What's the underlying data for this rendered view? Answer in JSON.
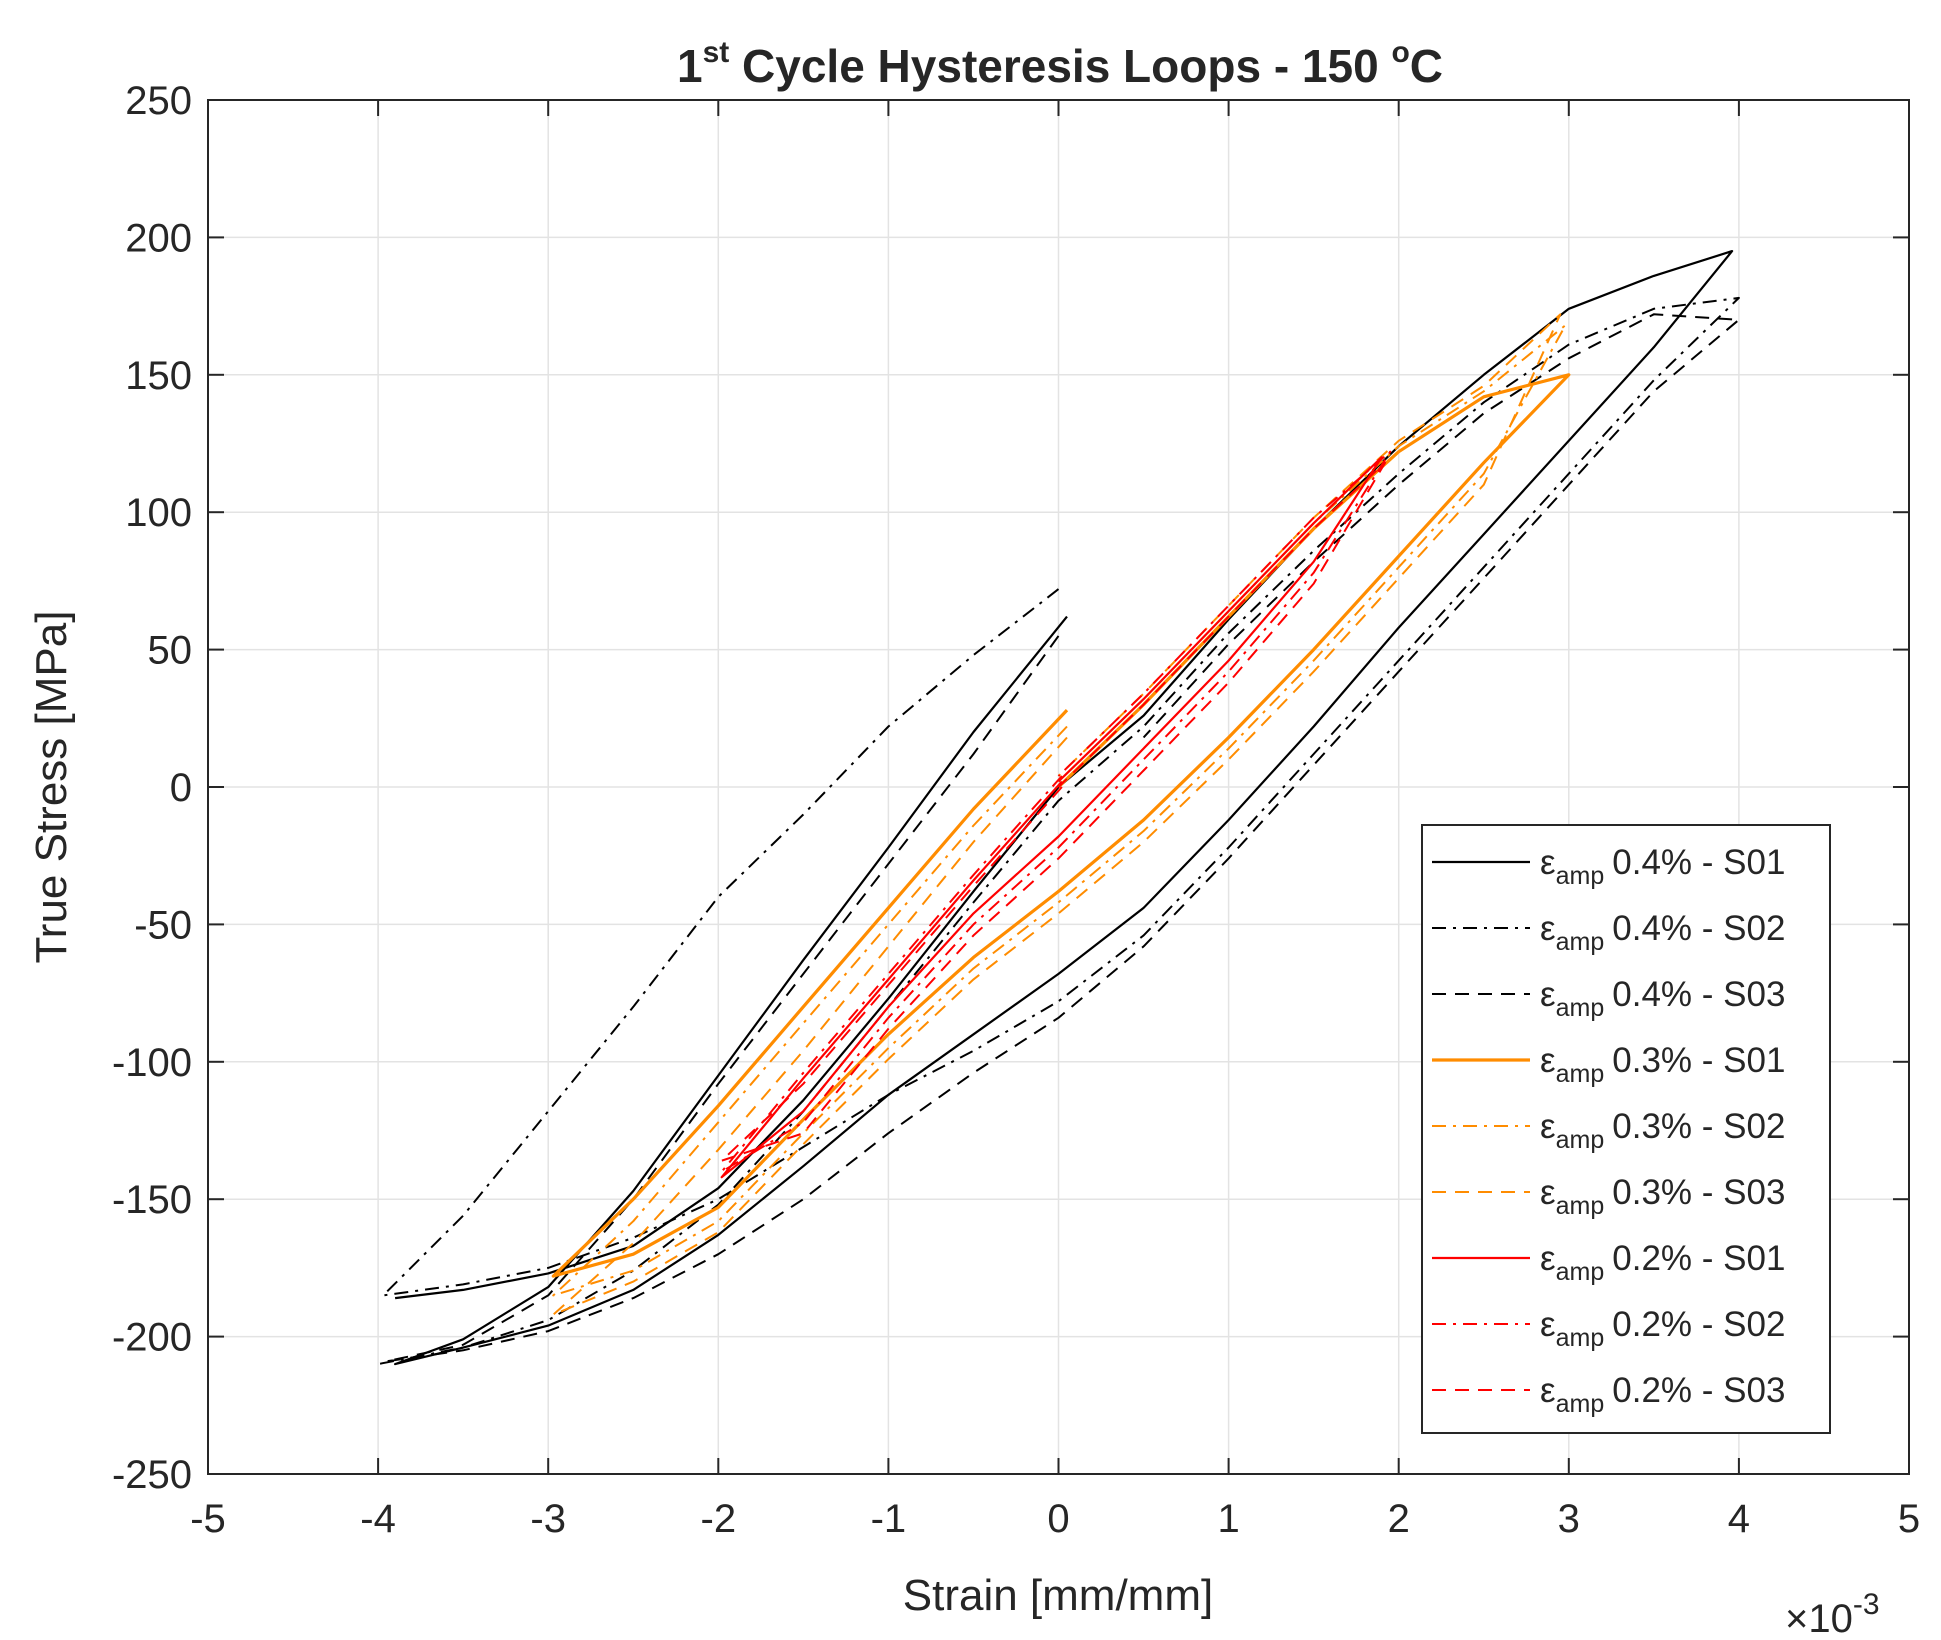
{
  "chart_data": {
    "type": "line",
    "title": {
      "prefix": "1",
      "prefix_sup": "st",
      "main": " Cycle Hysteresis Loops - 150 ",
      "deg": "o",
      "unit": "C"
    },
    "xlabel": "Strain [mm/mm]",
    "ylabel": "True Stress [MPa]",
    "x_exponent": {
      "base": "×10",
      "exp": "-3"
    },
    "xlim": [
      -5,
      5
    ],
    "ylim": [
      -250,
      250
    ],
    "xticks": [
      -5,
      -4,
      -3,
      -2,
      -1,
      0,
      1,
      2,
      3,
      4,
      5
    ],
    "yticks": [
      250,
      200,
      150,
      100,
      50,
      0,
      -50,
      -100,
      -150,
      -200,
      -250
    ],
    "grid": true,
    "legend_position": "bottom-right",
    "legend_symbol": "ε",
    "legend_sub": "amp",
    "series": [
      {
        "name": "0.4% - S01",
        "color": "#000000",
        "style": "solid",
        "width": 2.2,
        "points": [
          [
            0.05,
            62
          ],
          [
            -0.5,
            20
          ],
          [
            -1,
            -22
          ],
          [
            -1.5,
            -63
          ],
          [
            -2,
            -105
          ],
          [
            -2.5,
            -147
          ],
          [
            -3,
            -182
          ],
          [
            -3.5,
            -201
          ],
          [
            -3.9,
            -210
          ],
          [
            -3.5,
            -204
          ],
          [
            -3,
            -196
          ],
          [
            -2.5,
            -183
          ],
          [
            -2,
            -163
          ],
          [
            -1.5,
            -138
          ],
          [
            -1,
            -112
          ],
          [
            -0.5,
            -90
          ],
          [
            0,
            -68
          ],
          [
            0.5,
            -44
          ],
          [
            1,
            -12
          ],
          [
            1.5,
            22
          ],
          [
            2,
            58
          ],
          [
            2.5,
            92
          ],
          [
            3,
            126
          ],
          [
            3.5,
            160
          ],
          [
            3.96,
            195
          ],
          [
            3.5,
            186
          ],
          [
            3,
            174
          ],
          [
            2.5,
            150
          ],
          [
            2,
            124
          ],
          [
            1.5,
            94
          ],
          [
            1,
            61
          ],
          [
            0.5,
            26
          ],
          [
            0,
            0
          ],
          [
            -0.5,
            -38
          ],
          [
            -1,
            -77
          ],
          [
            -1.5,
            -114
          ],
          [
            -2,
            -146
          ],
          [
            -2.5,
            -167
          ],
          [
            -3,
            -177
          ],
          [
            -3.5,
            -183
          ],
          [
            -3.9,
            -186
          ]
        ]
      },
      {
        "name": "0.4% - S02",
        "color": "#000000",
        "style": "dashdot",
        "width": 2,
        "points": [
          [
            0,
            72
          ],
          [
            -0.5,
            48
          ],
          [
            -1,
            22
          ],
          [
            -1.5,
            -10
          ],
          [
            -2,
            -40
          ],
          [
            -2.5,
            -80
          ],
          [
            -3,
            -118
          ],
          [
            -3.5,
            -156
          ],
          [
            -3.97,
            -185
          ],
          [
            -3.5,
            -181
          ],
          [
            -3,
            -175
          ],
          [
            -2.5,
            -164
          ],
          [
            -2,
            -150
          ],
          [
            -1.5,
            -131
          ],
          [
            -1,
            -112
          ],
          [
            -0.5,
            -96
          ],
          [
            0,
            -78
          ],
          [
            0.5,
            -54
          ],
          [
            1,
            -22
          ],
          [
            1.5,
            12
          ],
          [
            2,
            46
          ],
          [
            2.5,
            80
          ],
          [
            3,
            114
          ],
          [
            3.5,
            148
          ],
          [
            4,
            178
          ],
          [
            3.5,
            174
          ],
          [
            3,
            161
          ],
          [
            2.5,
            140
          ],
          [
            2,
            114
          ],
          [
            1.5,
            86
          ],
          [
            1,
            56
          ],
          [
            0.5,
            22
          ],
          [
            0,
            -5
          ],
          [
            -0.5,
            -42
          ],
          [
            -1,
            -80
          ],
          [
            -1.5,
            -118
          ],
          [
            -2,
            -152
          ],
          [
            -2.5,
            -176
          ],
          [
            -3,
            -194
          ],
          [
            -3.5,
            -204
          ],
          [
            -4,
            -210
          ]
        ]
      },
      {
        "name": "0.4% - S03",
        "color": "#000000",
        "style": "dash",
        "width": 2,
        "points": [
          [
            0,
            55
          ],
          [
            -0.5,
            12
          ],
          [
            -1,
            -28
          ],
          [
            -1.5,
            -68
          ],
          [
            -2,
            -108
          ],
          [
            -2.5,
            -150
          ],
          [
            -3,
            -185
          ],
          [
            -3.5,
            -203
          ],
          [
            -3.95,
            -209
          ],
          [
            -3.5,
            -205
          ],
          [
            -3,
            -198
          ],
          [
            -2.5,
            -186
          ],
          [
            -2,
            -170
          ],
          [
            -1.5,
            -150
          ],
          [
            -1,
            -126
          ],
          [
            -0.5,
            -104
          ],
          [
            0,
            -84
          ],
          [
            0.5,
            -58
          ],
          [
            1,
            -26
          ],
          [
            1.5,
            8
          ],
          [
            2,
            42
          ],
          [
            2.5,
            76
          ],
          [
            3,
            110
          ],
          [
            3.5,
            144
          ],
          [
            4,
            170
          ],
          [
            3.5,
            172
          ],
          [
            3,
            156
          ],
          [
            2.5,
            136
          ],
          [
            2,
            110
          ],
          [
            1.5,
            82
          ],
          [
            1,
            52
          ],
          [
            0.5,
            18
          ]
        ]
      },
      {
        "name": "0.3% - S01",
        "color": "#FF8C00",
        "style": "solid",
        "width": 3.2,
        "points": [
          [
            0.05,
            28
          ],
          [
            -0.5,
            -8
          ],
          [
            -1,
            -44
          ],
          [
            -1.5,
            -80
          ],
          [
            -2,
            -116
          ],
          [
            -2.5,
            -150
          ],
          [
            -2.97,
            -178
          ],
          [
            -2.5,
            -170
          ],
          [
            -2,
            -153
          ],
          [
            -1.5,
            -121
          ],
          [
            -1,
            -90
          ],
          [
            -0.5,
            -62
          ],
          [
            0,
            -38
          ],
          [
            0.5,
            -12
          ],
          [
            1,
            18
          ],
          [
            1.5,
            50
          ],
          [
            2,
            84
          ],
          [
            2.5,
            118
          ],
          [
            3,
            150
          ],
          [
            2.5,
            142
          ],
          [
            2,
            122
          ],
          [
            1.5,
            94
          ],
          [
            1,
            62
          ],
          [
            0.5,
            30
          ],
          [
            0,
            0
          ]
        ]
      },
      {
        "name": "0.3% - S02",
        "color": "#FF8C00",
        "style": "dashdot",
        "width": 2,
        "points": [
          [
            0.05,
            22
          ],
          [
            -0.5,
            -14
          ],
          [
            -1,
            -50
          ],
          [
            -1.5,
            -86
          ],
          [
            -2,
            -122
          ],
          [
            -2.5,
            -158
          ],
          [
            -2.97,
            -185
          ],
          [
            -2.5,
            -176
          ],
          [
            -2,
            -158
          ],
          [
            -1.5,
            -126
          ],
          [
            -1,
            -95
          ],
          [
            -0.5,
            -66
          ],
          [
            0,
            -42
          ],
          [
            0.5,
            -16
          ],
          [
            1,
            14
          ],
          [
            1.5,
            46
          ],
          [
            2,
            80
          ],
          [
            2.5,
            114
          ],
          [
            2.98,
            168
          ],
          [
            2.5,
            144
          ],
          [
            2,
            124
          ],
          [
            1.5,
            96
          ],
          [
            1,
            64
          ],
          [
            0.5,
            32
          ],
          [
            0,
            2
          ]
        ]
      },
      {
        "name": "0.3% - S03",
        "color": "#FF8C00",
        "style": "dash",
        "width": 2,
        "points": [
          [
            0.05,
            18
          ],
          [
            -0.5,
            -20
          ],
          [
            -1,
            -58
          ],
          [
            -1.5,
            -96
          ],
          [
            -2,
            -132
          ],
          [
            -2.5,
            -166
          ],
          [
            -2.97,
            -192
          ],
          [
            -2.5,
            -180
          ],
          [
            -2,
            -162
          ],
          [
            -1.5,
            -130
          ],
          [
            -1,
            -99
          ],
          [
            -0.5,
            -70
          ],
          [
            0,
            -46
          ],
          [
            0.5,
            -20
          ],
          [
            1,
            10
          ],
          [
            1.5,
            42
          ],
          [
            2,
            76
          ],
          [
            2.5,
            110
          ],
          [
            2.95,
            172
          ],
          [
            2.5,
            146
          ],
          [
            2,
            126
          ],
          [
            1.5,
            98
          ],
          [
            1,
            66
          ],
          [
            0.5,
            34
          ],
          [
            0,
            4
          ]
        ]
      },
      {
        "name": "0.2% - S01",
        "color": "#FF0000",
        "style": "solid",
        "width": 2.2,
        "points": [
          [
            0.02,
            2
          ],
          [
            -0.5,
            -34
          ],
          [
            -1,
            -70
          ],
          [
            -1.5,
            -106
          ],
          [
            -1.98,
            -142
          ],
          [
            -1.5,
            -118
          ],
          [
            -1,
            -80
          ],
          [
            -0.5,
            -46
          ],
          [
            0,
            -18
          ],
          [
            0.5,
            14
          ],
          [
            1,
            46
          ],
          [
            1.5,
            82
          ],
          [
            1.9,
            120
          ],
          [
            1.5,
            96
          ],
          [
            1,
            64
          ],
          [
            0.5,
            32
          ],
          [
            0,
            2
          ]
        ]
      },
      {
        "name": "0.2% - S02",
        "color": "#FF0000",
        "style": "dashdot",
        "width": 2,
        "points": [
          [
            0.02,
            4
          ],
          [
            -0.5,
            -32
          ],
          [
            -1,
            -68
          ],
          [
            -1.5,
            -104
          ],
          [
            -1.98,
            -140
          ],
          [
            -1.5,
            -122
          ],
          [
            -1,
            -84
          ],
          [
            -0.5,
            -50
          ],
          [
            0,
            -22
          ],
          [
            0.5,
            10
          ],
          [
            1,
            42
          ],
          [
            1.5,
            78
          ],
          [
            1.95,
            122
          ],
          [
            1.5,
            98
          ],
          [
            1,
            66
          ],
          [
            0.5,
            34
          ],
          [
            0,
            4
          ]
        ]
      },
      {
        "name": "0.2% - S03",
        "color": "#FF0000",
        "style": "dash",
        "width": 2,
        "points": [
          [
            0.02,
            0
          ],
          [
            -0.5,
            -36
          ],
          [
            -1,
            -72
          ],
          [
            -1.5,
            -108
          ],
          [
            -1.98,
            -136
          ],
          [
            -1.5,
            -126
          ],
          [
            -1,
            -88
          ],
          [
            -0.5,
            -54
          ],
          [
            0,
            -26
          ],
          [
            0.5,
            6
          ],
          [
            1,
            38
          ],
          [
            1.5,
            74
          ],
          [
            1.92,
            118
          ],
          [
            1.5,
            94
          ],
          [
            1,
            62
          ],
          [
            0.5,
            30
          ],
          [
            0,
            0
          ]
        ]
      }
    ]
  }
}
